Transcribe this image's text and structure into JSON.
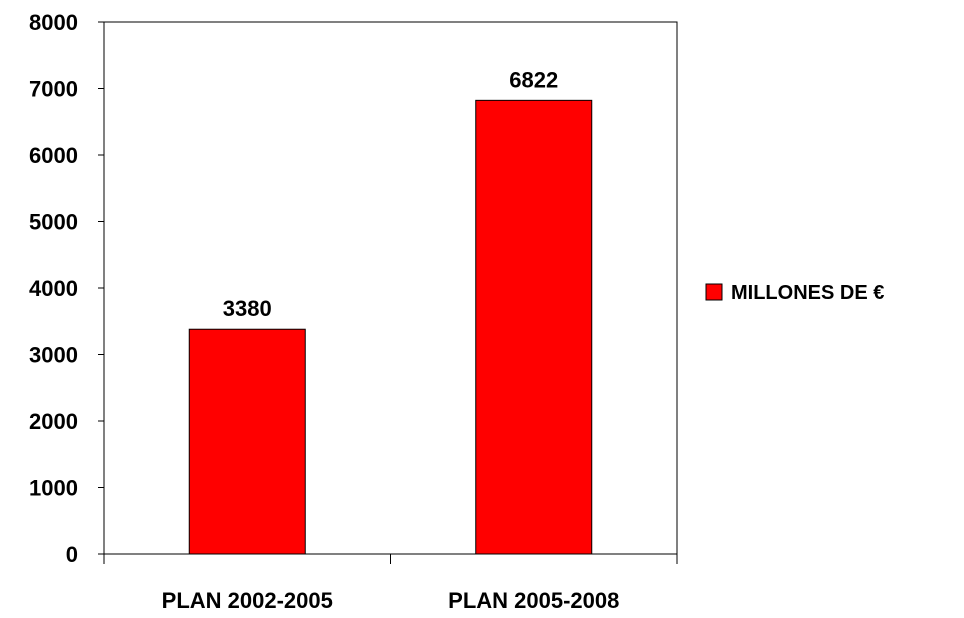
{
  "chart_data": {
    "type": "bar",
    "categories": [
      "PLAN 2002-2005",
      "PLAN 2005-2008"
    ],
    "series": [
      {
        "name": "MILLONES DE €",
        "values": [
          3380,
          6822
        ]
      }
    ],
    "data_labels": [
      "3380",
      "6822"
    ],
    "ylim": [
      0,
      8000
    ],
    "yticks": [
      0,
      1000,
      2000,
      3000,
      4000,
      5000,
      6000,
      7000,
      8000
    ],
    "ytick_labels": [
      "0",
      "1000",
      "2000",
      "3000",
      "4000",
      "5000",
      "6000",
      "7000",
      "8000"
    ],
    "grid": false,
    "legend_position": "right",
    "colors": {
      "bar": "#ff0000",
      "bar_stroke": "#000000",
      "axis": "#000000"
    }
  }
}
